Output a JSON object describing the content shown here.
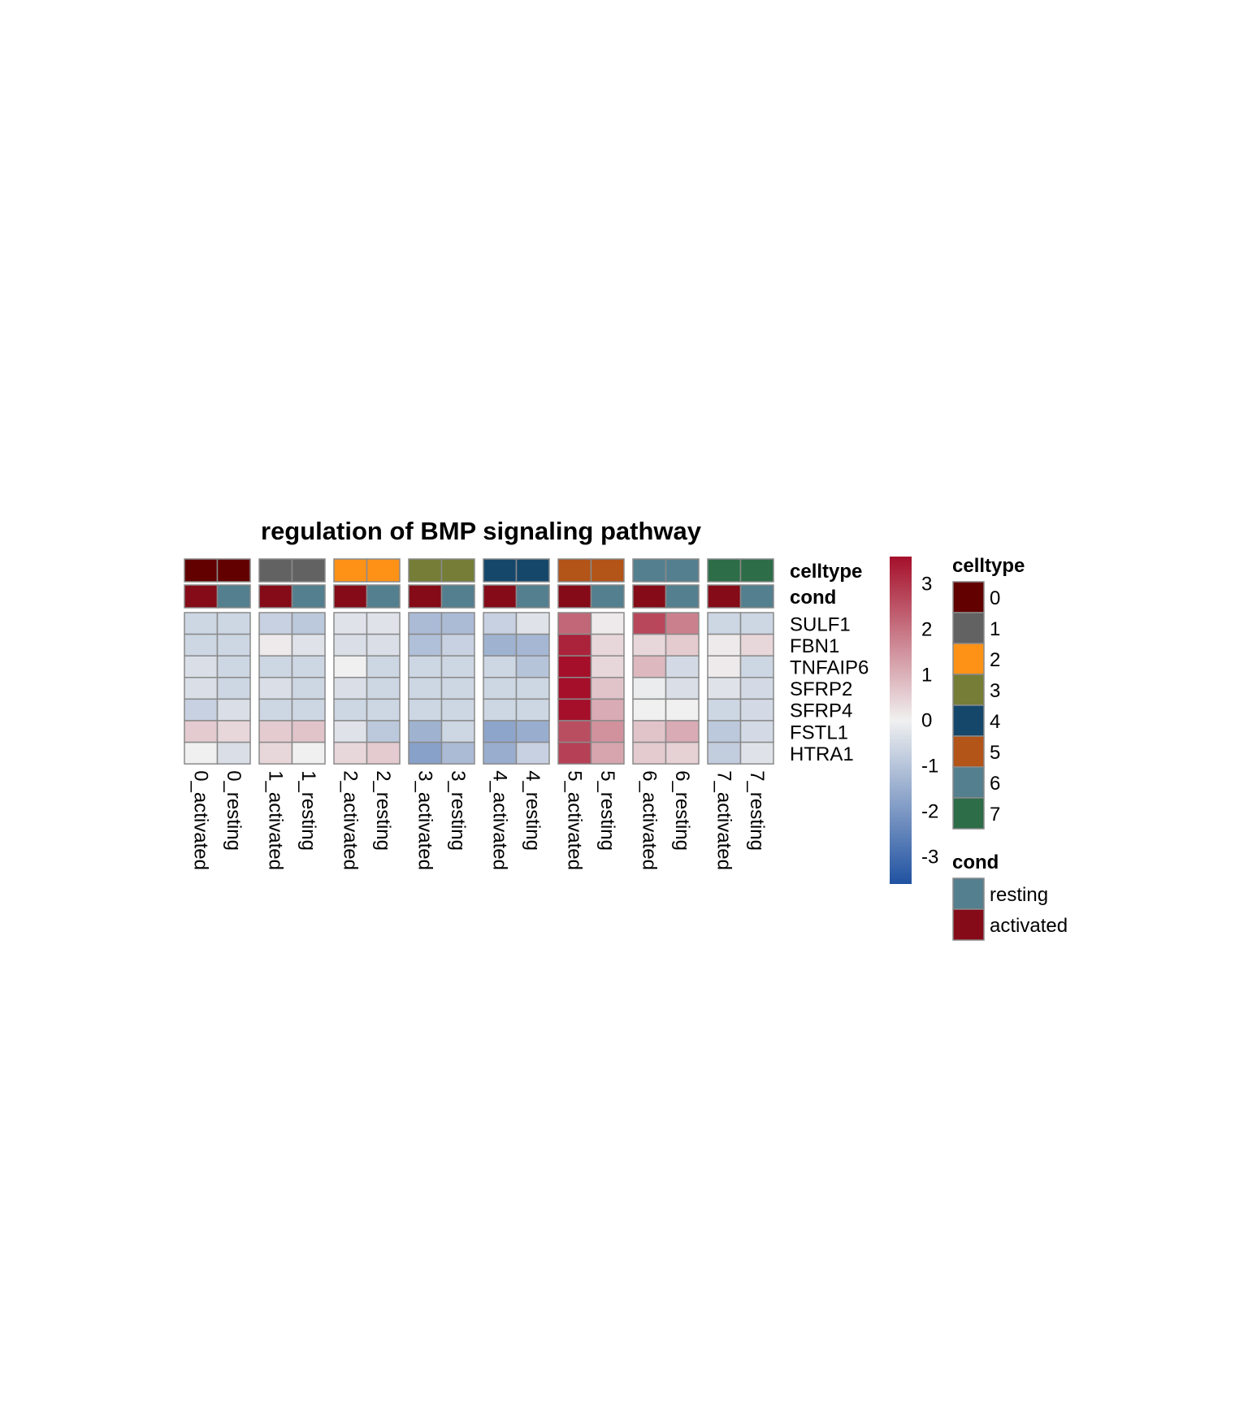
{
  "chart_data": {
    "type": "heatmap",
    "title": "regulation of BMP signaling pathway",
    "columns": [
      "0_activated",
      "0_resting",
      "1_activated",
      "1_resting",
      "2_activated",
      "2_resting",
      "3_activated",
      "3_resting",
      "4_activated",
      "4_resting",
      "5_activated",
      "5_resting",
      "6_activated",
      "6_resting",
      "7_activated",
      "7_resting"
    ],
    "rows": [
      "SULF1",
      "FBN1",
      "TNFAIP6",
      "SFRP2",
      "SFRP4",
      "FSTL1",
      "HTRA1"
    ],
    "values": [
      [
        -0.6,
        -0.6,
        -0.7,
        -0.9,
        -0.3,
        -0.3,
        -1.2,
        -1.2,
        -0.7,
        -0.3,
        2.2,
        0.1,
        2.7,
        1.8,
        -0.6,
        -0.6
      ],
      [
        -0.6,
        -0.6,
        0.1,
        -0.3,
        -0.4,
        -0.4,
        -1.1,
        -0.7,
        -1.4,
        -1.3,
        3.3,
        0.4,
        0.4,
        0.6,
        0.1,
        0.4
      ],
      [
        -0.4,
        -0.6,
        -0.6,
        -0.6,
        0.0,
        -0.6,
        -0.6,
        -0.6,
        -0.6,
        -1.0,
        3.6,
        0.4,
        0.9,
        -0.5,
        0.1,
        -0.6
      ],
      [
        -0.4,
        -0.6,
        -0.4,
        -0.6,
        -0.4,
        -0.6,
        -0.6,
        -0.6,
        -0.6,
        -0.6,
        3.6,
        0.7,
        -0.1,
        -0.4,
        -0.3,
        -0.5
      ],
      [
        -0.7,
        -0.4,
        -0.6,
        -0.6,
        -0.6,
        -0.6,
        -0.6,
        -0.6,
        -0.6,
        -0.6,
        3.6,
        1.1,
        0.0,
        0.0,
        -0.6,
        -0.5
      ],
      [
        0.6,
        0.4,
        0.6,
        0.7,
        -0.3,
        -0.9,
        -1.4,
        -0.6,
        -1.7,
        -1.5,
        2.6,
        1.5,
        0.7,
        1.1,
        -0.9,
        -0.5
      ],
      [
        0.0,
        -0.4,
        0.4,
        0.0,
        0.4,
        0.6,
        -1.8,
        -1.2,
        -1.5,
        -0.7,
        2.8,
        1.2,
        0.6,
        0.5,
        -0.8,
        -0.3
      ]
    ],
    "annotations": [
      {
        "name": "celltype",
        "values": [
          "0",
          "0",
          "1",
          "1",
          "2",
          "2",
          "3",
          "3",
          "4",
          "4",
          "5",
          "5",
          "6",
          "6",
          "7",
          "7"
        ]
      },
      {
        "name": "cond",
        "values": [
          "activated",
          "resting",
          "activated",
          "resting",
          "activated",
          "resting",
          "activated",
          "resting",
          "activated",
          "resting",
          "activated",
          "resting",
          "activated",
          "resting",
          "activated",
          "resting"
        ]
      }
    ],
    "column_gaps_after": [
      1,
      3,
      5,
      7,
      9,
      11,
      13
    ],
    "color_scale": {
      "min": -3.6,
      "max": 3.6,
      "low": "#2052a1",
      "mid": "#f0f0f0",
      "high": "#a50f2a",
      "ticks": [
        3,
        2,
        1,
        0,
        -1,
        -2,
        -3
      ]
    },
    "legends": {
      "celltype": {
        "title": "celltype",
        "entries": [
          {
            "label": "0",
            "color": "#620000"
          },
          {
            "label": "1",
            "color": "#626262"
          },
          {
            "label": "2",
            "color": "#fe9217"
          },
          {
            "label": "3",
            "color": "#757d37"
          },
          {
            "label": "4",
            "color": "#15476b"
          },
          {
            "label": "5",
            "color": "#b35419"
          },
          {
            "label": "6",
            "color": "#547f8f"
          },
          {
            "label": "7",
            "color": "#2d6d48"
          }
        ]
      },
      "cond": {
        "title": "cond",
        "entries": [
          {
            "label": "resting",
            "color": "#547f8f"
          },
          {
            "label": "activated",
            "color": "#850b18"
          }
        ]
      }
    }
  }
}
